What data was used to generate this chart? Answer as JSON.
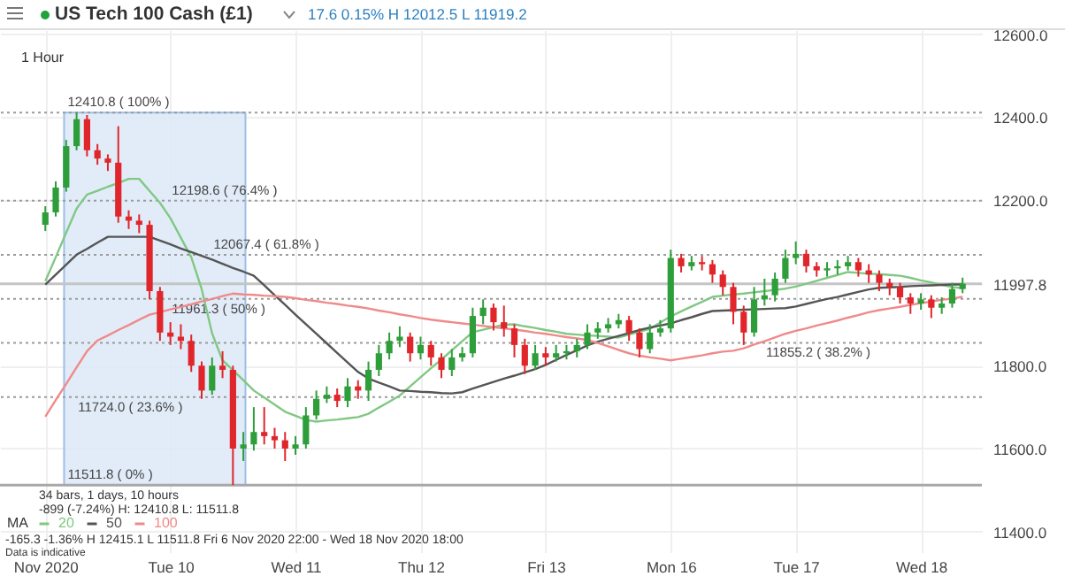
{
  "chart_data": {
    "type": "candlestick",
    "title": "US Tech 100 Cash (£1)",
    "subtitle": "1 Hour",
    "annotations": [
      "17.6 0.15% H 12012.5 L 11919.2",
      "34 bars, 1 days, 10 hours",
      "-899 (-7.24%) H: 12410.8 L: 11511.8",
      "-165.3 -1.36% H 12415.1 L 11511.8 Fri 6 Nov 2020 22:00 - Wed 18 Nov 2020 18:00",
      "Data is indicative"
    ],
    "categories": [
      "Nov 2020",
      null,
      null,
      null,
      null,
      null,
      null,
      null,
      null,
      null,
      null,
      null,
      "Tue 10",
      null,
      null,
      null,
      null,
      null,
      null,
      null,
      null,
      null,
      null,
      null,
      "Wed 11",
      null,
      null,
      null,
      null,
      null,
      null,
      null,
      null,
      null,
      null,
      null,
      "Thu 12",
      null,
      null,
      null,
      null,
      null,
      null,
      null,
      null,
      null,
      null,
      null,
      "Fri 13",
      null,
      null,
      null,
      null,
      null,
      null,
      null,
      null,
      null,
      null,
      null,
      "Mon 16",
      null,
      null,
      null,
      null,
      null,
      null,
      null,
      null,
      null,
      null,
      null,
      "Tue 17",
      null,
      null,
      null,
      null,
      null,
      null,
      null,
      null,
      null,
      null,
      null,
      "Wed 18",
      null,
      null,
      null,
      null
    ],
    "ylim": [
      11350,
      12610
    ],
    "yticks": [
      {
        "value": 11400,
        "label": "11400.0"
      },
      {
        "value": 11600,
        "label": "11600.0"
      },
      {
        "value": 11800,
        "label": "11800.0"
      },
      {
        "value": 11997.8,
        "label": "11997.8"
      },
      {
        "value": 12200,
        "label": "12200.0"
      },
      {
        "value": 12400,
        "label": "12400.0"
      },
      {
        "value": 12600,
        "label": "12600.0"
      }
    ],
    "grid": true,
    "legend": "bottom left",
    "legend_title": "MA",
    "series": [
      {
        "ohlc": [
          [
            12140,
            12185,
            12125,
            12170
          ],
          [
            12170,
            12245,
            12160,
            12230
          ],
          [
            12230,
            12345,
            12220,
            12330
          ],
          [
            12330,
            12410.8,
            12320,
            12395
          ],
          [
            12395,
            12405,
            12305,
            12320
          ],
          [
            12320,
            12335,
            12285,
            12300
          ],
          [
            12300,
            12310,
            12270,
            12290
          ],
          [
            12290,
            12378,
            12145,
            12160
          ],
          [
            12160,
            12175,
            12130,
            12150
          ],
          [
            12150,
            12165,
            12120,
            12140
          ],
          [
            12140,
            12150,
            11960,
            11980
          ],
          [
            11980,
            11990,
            11860,
            11880
          ],
          [
            11880,
            11905,
            11850,
            11870
          ],
          [
            11870,
            11900,
            11840,
            11860
          ],
          [
            11860,
            11875,
            11785,
            11800
          ],
          [
            11800,
            11810,
            11720,
            11740
          ],
          [
            11740,
            11820,
            11730,
            11800
          ],
          [
            11800,
            11835,
            11770,
            11790
          ],
          [
            11790,
            11800,
            11511.8,
            11600
          ],
          [
            11600,
            11640,
            11570,
            11610
          ],
          [
            11610,
            11700,
            11595,
            11640
          ],
          [
            11640,
            11700,
            11610,
            11630
          ],
          [
            11630,
            11650,
            11600,
            11620
          ],
          [
            11620,
            11640,
            11570,
            11600
          ],
          [
            11600,
            11630,
            11585,
            11610
          ],
          [
            11610,
            11700,
            11600,
            11680
          ],
          [
            11680,
            11740,
            11670,
            11720
          ],
          [
            11720,
            11750,
            11710,
            11730
          ],
          [
            11730,
            11745,
            11700,
            11715
          ],
          [
            11715,
            11770,
            11700,
            11750
          ],
          [
            11750,
            11765,
            11720,
            11740
          ],
          [
            11740,
            11810,
            11715,
            11790
          ],
          [
            11790,
            11850,
            11775,
            11830
          ],
          [
            11830,
            11880,
            11815,
            11860
          ],
          [
            11860,
            11895,
            11845,
            11870
          ],
          [
            11870,
            11880,
            11810,
            11830
          ],
          [
            11830,
            11870,
            11815,
            11850
          ],
          [
            11850,
            11860,
            11800,
            11820
          ],
          [
            11820,
            11830,
            11770,
            11790
          ],
          [
            11790,
            11840,
            11775,
            11820
          ],
          [
            11820,
            11845,
            11810,
            11830
          ],
          [
            11830,
            11940,
            11820,
            11920
          ],
          [
            11920,
            11960,
            11900,
            11940
          ],
          [
            11940,
            11950,
            11885,
            11905
          ],
          [
            11905,
            11945,
            11870,
            11890
          ],
          [
            11890,
            11900,
            11820,
            11850
          ],
          [
            11850,
            11865,
            11780,
            11800
          ],
          [
            11800,
            11850,
            11790,
            11830
          ],
          [
            11830,
            11845,
            11800,
            11820
          ],
          [
            11820,
            11850,
            11810,
            11830
          ],
          [
            11830,
            11850,
            11815,
            11835
          ],
          [
            11835,
            11865,
            11820,
            11850
          ],
          [
            11850,
            11900,
            11840,
            11880
          ],
          [
            11880,
            11905,
            11865,
            11890
          ],
          [
            11890,
            11915,
            11880,
            11900
          ],
          [
            11900,
            11925,
            11890,
            11910
          ],
          [
            11910,
            11920,
            11860,
            11880
          ],
          [
            11880,
            11890,
            11820,
            11840
          ],
          [
            11840,
            11900,
            11830,
            11880
          ],
          [
            11880,
            11910,
            11870,
            11890
          ],
          [
            11890,
            12080,
            11880,
            12060
          ],
          [
            12060,
            12070,
            12025,
            12040
          ],
          [
            12040,
            12065,
            12030,
            12050
          ],
          [
            12050,
            12065,
            12030,
            12045
          ],
          [
            12045,
            12055,
            12000,
            12020
          ],
          [
            12020,
            12030,
            11970,
            11990
          ],
          [
            11990,
            12000,
            11900,
            11930
          ],
          [
            11930,
            11945,
            11850,
            11880
          ],
          [
            11880,
            11990,
            11870,
            11960
          ],
          [
            11960,
            12010,
            11945,
            11970
          ],
          [
            11970,
            12025,
            11955,
            12010
          ],
          [
            12010,
            12080,
            12000,
            12060
          ],
          [
            12060,
            12100,
            12045,
            12070
          ],
          [
            12070,
            12080,
            12025,
            12040
          ],
          [
            12040,
            12050,
            12015,
            12030
          ],
          [
            12030,
            12050,
            12015,
            12035
          ],
          [
            12035,
            12055,
            12020,
            12040
          ],
          [
            12040,
            12065,
            12030,
            12050
          ],
          [
            12050,
            12060,
            12015,
            12030
          ],
          [
            12030,
            12045,
            12000,
            12020
          ],
          [
            12020,
            12030,
            11980,
            12000
          ],
          [
            12000,
            12010,
            11970,
            11990
          ],
          [
            11990,
            12000,
            11950,
            11965
          ],
          [
            11965,
            11975,
            11925,
            11950
          ],
          [
            11950,
            11975,
            11935,
            11960
          ],
          [
            11960,
            11970,
            11915,
            11940
          ],
          [
            11940,
            11965,
            11925,
            11950
          ],
          [
            11950,
            12000,
            11940,
            11985
          ],
          [
            11985,
            12012.5,
            11975,
            11997.8
          ]
        ],
        "colors": [
          "#2e9e3a",
          "#2e9e3a",
          "#2e9e3a",
          "#2e9e3a",
          "#e0262b",
          "#e0262b",
          "#e0262b",
          "#e0262b",
          "#e0262b",
          "#e0262b",
          "#e0262b",
          "#e0262b",
          "#e0262b",
          "#e0262b",
          "#e0262b",
          "#e0262b",
          "#2e9e3a",
          "#e0262b",
          "#e0262b",
          "#2e9e3a",
          "#2e9e3a",
          "#e0262b",
          "#e0262b",
          "#e0262b",
          "#2e9e3a",
          "#2e9e3a",
          "#2e9e3a",
          "#2e9e3a",
          "#e0262b",
          "#2e9e3a",
          "#e0262b",
          "#2e9e3a",
          "#2e9e3a",
          "#2e9e3a",
          "#2e9e3a",
          "#e0262b",
          "#2e9e3a",
          "#e0262b",
          "#e0262b",
          "#2e9e3a",
          "#2e9e3a",
          "#2e9e3a",
          "#2e9e3a",
          "#e0262b",
          "#e0262b",
          "#e0262b",
          "#e0262b",
          "#2e9e3a",
          "#e0262b",
          "#2e9e3a",
          "#2e9e3a",
          "#2e9e3a",
          "#2e9e3a",
          "#2e9e3a",
          "#2e9e3a",
          "#2e9e3a",
          "#e0262b",
          "#e0262b",
          "#2e9e3a",
          "#2e9e3a",
          "#2e9e3a",
          "#e0262b",
          "#2e9e3a",
          "#e0262b",
          "#e0262b",
          "#e0262b",
          "#e0262b",
          "#e0262b",
          "#2e9e3a",
          "#2e9e3a",
          "#2e9e3a",
          "#2e9e3a",
          "#2e9e3a",
          "#e0262b",
          "#e0262b",
          "#2e9e3a",
          "#2e9e3a",
          "#2e9e3a",
          "#e0262b",
          "#e0262b",
          "#e0262b",
          "#e0262b",
          "#e0262b",
          "#e0262b",
          "#2e9e3a",
          "#e0262b",
          "#2e9e3a",
          "#2e9e3a",
          "#2e9e3a"
        ]
      },
      {
        "type": "line",
        "name": "20",
        "color": "#80c883",
        "values": [
          12004,
          12062,
          12121,
          12179,
          12213,
          12222,
          12232,
          12241,
          12251,
          12251,
          12222,
          12193,
          12156,
          12109,
          12062,
          11985,
          11878,
          11813,
          11789,
          11765,
          11740,
          11723,
          11706,
          11689,
          11679,
          11669,
          11665,
          11668,
          11670,
          11673,
          11676,
          11684,
          11699,
          11713,
          11728,
          11750,
          11772,
          11794,
          11815,
          11837,
          11859,
          11881,
          11887,
          11893,
          11899,
          11900,
          11895,
          11891,
          11886,
          11882,
          11877,
          11875,
          11873,
          11872,
          11870,
          11868,
          11875,
          11882,
          11889,
          11904,
          11919,
          11931,
          11943,
          11954,
          11966,
          11969,
          11972,
          11974,
          11977,
          11980,
          11983,
          11986,
          11991,
          11998,
          12005,
          12012,
          12019,
          12026,
          12024,
          12022,
          12021,
          12019,
          12017,
          12012,
          12006,
          12001,
          11995,
          11990,
          11987
        ]
      },
      {
        "type": "line",
        "name": "50",
        "color": "#555555",
        "values": [
          11996,
          12020,
          12044,
          12068,
          12082,
          12097,
          12111,
          12111,
          12111,
          12111,
          12111,
          12102,
          12093,
          12083,
          12074,
          12065,
          12056,
          12046,
          12036,
          12027,
          12017,
          11994,
          11970,
          11947,
          11923,
          11900,
          11877,
          11854,
          11831,
          11808,
          11785,
          11769,
          11759,
          11750,
          11740,
          11739,
          11737,
          11736,
          11734,
          11733,
          11736,
          11745,
          11753,
          11761,
          11769,
          11776,
          11784,
          11792,
          11802,
          11814,
          11826,
          11837,
          11849,
          11858,
          11865,
          11872,
          11879,
          11886,
          11892,
          11897,
          11902,
          11910,
          11917,
          11925,
          11932,
          11933,
          11934,
          11935,
          11936,
          11937,
          11938,
          11939,
          11943,
          11949,
          11955,
          11961,
          11966,
          11972,
          11978,
          11984,
          11988,
          11989,
          11990,
          11992,
          11993,
          11994,
          11995,
          11996,
          11996
        ]
      },
      {
        "type": "line",
        "name": "100",
        "color": "#f08a8a",
        "values": [
          11677,
          11717,
          11756,
          11796,
          11835,
          11861,
          11873,
          11886,
          11898,
          11911,
          11923,
          11929,
          11936,
          11942,
          11948,
          11955,
          11961,
          11968,
          11974,
          11972,
          11971,
          11969,
          11968,
          11966,
          11963,
          11959,
          11956,
          11952,
          11949,
          11945,
          11942,
          11938,
          11933,
          11929,
          11924,
          11920,
          11915,
          11911,
          11908,
          11905,
          11902,
          11899,
          11896,
          11893,
          11890,
          11887,
          11884,
          11880,
          11877,
          11873,
          11869,
          11866,
          11862,
          11855,
          11847,
          11838,
          11830,
          11824,
          11820,
          11817,
          11813,
          11817,
          11821,
          11825,
          11830,
          11834,
          11836,
          11842,
          11851,
          11859,
          11868,
          11877,
          11884,
          11890,
          11897,
          11903,
          11909,
          11916,
          11922,
          11929,
          11934,
          11938,
          11942,
          11947,
          11951,
          11955,
          11959,
          11962,
          11966
        ]
      }
    ],
    "ref_lines": [
      {
        "axis": "y",
        "value": 12410.8,
        "label": "12410.8 ( 100% )",
        "color": "#9a9a9a",
        "line_style": "dotted"
      },
      {
        "axis": "y",
        "value": 12198.6,
        "label": "12198.6 ( 76.4% )",
        "color": "#9a9a9a",
        "line_style": "dotted"
      },
      {
        "axis": "y",
        "value": 12067.4,
        "label": "12067.4 ( 61.8% )",
        "color": "#9a9a9a",
        "line_style": "dotted"
      },
      {
        "axis": "y",
        "value": 11961.3,
        "label": "11961.3 ( 50% )",
        "color": "#9a9a9a",
        "line_style": "dotted"
      },
      {
        "axis": "y",
        "value": 11855.2,
        "label": "11855.2 ( 38.2% )",
        "color": "#9a9a9a",
        "line_style": "dotted"
      },
      {
        "axis": "y",
        "value": 11724.0,
        "label": "11724.0 ( 23.6% )",
        "color": "#9a9a9a",
        "line_style": "dotted"
      },
      {
        "axis": "y",
        "value": 11511.8,
        "label": "11511.8 ( 0% )",
        "color": "#a8a8a8",
        "line_style": "solid"
      },
      {
        "axis": "y",
        "value": 11997.8,
        "color": "#c4c4c4",
        "line_style": "solid"
      }
    ],
    "bands": [
      {
        "axis": "y",
        "from": 11511.8,
        "to": 12410.8,
        "color": "#dce9f7"
      }
    ]
  }
}
